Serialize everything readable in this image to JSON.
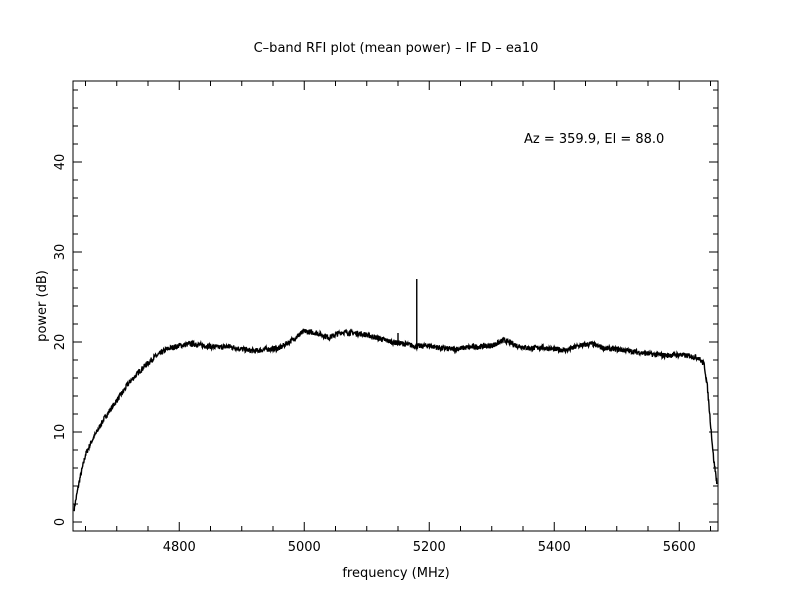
{
  "chart_data": {
    "type": "line",
    "title": "C–band RFI plot (mean power) – IF D – ea10",
    "xlabel": "frequency (MHz)",
    "ylabel": "power (dB)",
    "annotation": "Az = 359.9, El = 88.0",
    "xlim": [
      4630,
      5662
    ],
    "ylim": [
      -1,
      49
    ],
    "x_ticks": [
      4800,
      5000,
      5200,
      5400,
      5600
    ],
    "y_ticks": [
      0,
      10,
      20,
      30,
      40
    ],
    "x_tick_labels": [
      "4800",
      "5000",
      "5200",
      "5400",
      "5600"
    ],
    "y_tick_labels": [
      "0",
      "10",
      "20",
      "30",
      "40"
    ],
    "grid": false,
    "legend": "none",
    "line_color": "#000000",
    "series": [
      {
        "x": [
          4632,
          4640,
          4650,
          4660,
          4680,
          4700,
          4720,
          4740,
          4760,
          4780,
          4800,
          4820,
          4840,
          4860,
          4880,
          4900,
          4920,
          4940,
          4960,
          4980,
          5000,
          5020,
          5040,
          5060,
          5080,
          5100,
          5120,
          5140,
          5160,
          5180,
          5200,
          5220,
          5240,
          5260,
          5280,
          5300,
          5320,
          5340,
          5360,
          5380,
          5400,
          5420,
          5440,
          5460,
          5480,
          5500,
          5520,
          5540,
          5560,
          5580,
          5600,
          5620,
          5630,
          5640,
          5645,
          5650,
          5655,
          5660
        ],
        "y": [
          1.5,
          4.5,
          7.5,
          9.0,
          11.5,
          13.5,
          15.5,
          17.0,
          18.3,
          19.2,
          19.6,
          19.8,
          19.6,
          19.4,
          19.5,
          19.2,
          19.0,
          19.2,
          19.3,
          20.2,
          21.2,
          21.0,
          20.5,
          21.1,
          21.0,
          20.8,
          20.4,
          20.0,
          19.8,
          19.5,
          19.6,
          19.3,
          19.2,
          19.4,
          19.5,
          19.6,
          20.2,
          19.6,
          19.3,
          19.4,
          19.2,
          19.1,
          19.6,
          19.8,
          19.3,
          19.2,
          19.0,
          18.8,
          18.6,
          18.5,
          18.6,
          18.4,
          18.3,
          17.5,
          15.0,
          11.0,
          7.0,
          4.5
        ]
      }
    ],
    "spikes": [
      {
        "x": 5150,
        "y": 21.0
      },
      {
        "x": 5180,
        "y": 27.0
      }
    ]
  }
}
